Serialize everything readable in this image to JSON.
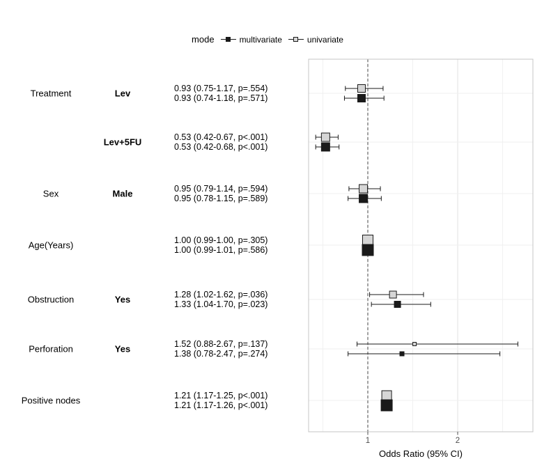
{
  "legend": {
    "title": "mode",
    "items": [
      {
        "mode": "multivariate",
        "label": "multivariate"
      },
      {
        "mode": "univariate",
        "label": "univariate"
      }
    ]
  },
  "axis": {
    "title": "Odds Ratio (95% CI)",
    "ticks": [
      1,
      2
    ],
    "tick_labels": [
      "1",
      "2"
    ],
    "minor_ticks": [
      0.5,
      1.5,
      2.5
    ],
    "ref_line": 1,
    "range": [
      0.34,
      2.84
    ],
    "scale": "linear"
  },
  "colors": {
    "multivariate": "#1a1a1a",
    "univariate": "#d6d6d6",
    "marker_stroke": "#1a1a1a",
    "whisker": "#1a1a1a",
    "grid_major": "#e2e2e2",
    "grid_minor": "#f1f1f1",
    "grid_row": "#efefef",
    "panel_border": "#c4c4c4",
    "ref_line": "#444444",
    "tick_text": "#4d4d4d"
  },
  "chart_data": {
    "type": "forest",
    "xlabel": "Odds Ratio (95% CI)",
    "x_ticks": [
      1,
      2
    ],
    "x_range": [
      0.34,
      2.84
    ],
    "reference_line": 1,
    "legend_title": "mode",
    "series_modes": [
      "univariate",
      "multivariate"
    ],
    "rows": [
      {
        "variable": "Treatment",
        "level": "Lev",
        "estimates": [
          {
            "mode": "univariate",
            "or": 0.93,
            "lo": 0.75,
            "hi": 1.17,
            "p": ".554",
            "label": "0.93 (0.75-1.17, p=.554)",
            "size": 11
          },
          {
            "mode": "multivariate",
            "or": 0.93,
            "lo": 0.74,
            "hi": 1.18,
            "p": ".571",
            "label": "0.93 (0.74-1.18, p=.571)",
            "size": 11
          }
        ]
      },
      {
        "variable": "",
        "level": "Lev+5FU",
        "estimates": [
          {
            "mode": "univariate",
            "or": 0.53,
            "lo": 0.42,
            "hi": 0.67,
            "p": "<.001",
            "label": "0.53 (0.42-0.67, p<.001)",
            "size": 12
          },
          {
            "mode": "multivariate",
            "or": 0.53,
            "lo": 0.42,
            "hi": 0.68,
            "p": "<.001",
            "label": "0.53 (0.42-0.68, p<.001)",
            "size": 12
          }
        ]
      },
      {
        "variable": "Sex",
        "level": "Male",
        "estimates": [
          {
            "mode": "univariate",
            "or": 0.95,
            "lo": 0.79,
            "hi": 1.14,
            "p": ".594",
            "label": "0.95 (0.79-1.14, p=.594)",
            "size": 12
          },
          {
            "mode": "multivariate",
            "or": 0.95,
            "lo": 0.78,
            "hi": 1.15,
            "p": ".589",
            "label": "0.95 (0.78-1.15, p=.589)",
            "size": 12
          }
        ]
      },
      {
        "variable": "Age(Years)",
        "level": "",
        "estimates": [
          {
            "mode": "univariate",
            "or": 1.0,
            "lo": 0.99,
            "hi": 1.0,
            "p": ".305",
            "label": "1.00 (0.99-1.00, p=.305)",
            "size": 15
          },
          {
            "mode": "multivariate",
            "or": 1.0,
            "lo": 0.99,
            "hi": 1.01,
            "p": ".586",
            "label": "1.00 (0.99-1.01, p=.586)",
            "size": 16
          }
        ]
      },
      {
        "variable": "Obstruction",
        "level": "Yes",
        "estimates": [
          {
            "mode": "univariate",
            "or": 1.28,
            "lo": 1.02,
            "hi": 1.62,
            "p": ".036",
            "label": "1.28 (1.02-1.62, p=.036)",
            "size": 10
          },
          {
            "mode": "multivariate",
            "or": 1.33,
            "lo": 1.04,
            "hi": 1.7,
            "p": ".023",
            "label": "1.33 (1.04-1.70, p=.023)",
            "size": 9
          }
        ]
      },
      {
        "variable": "Perforation",
        "level": "Yes",
        "estimates": [
          {
            "mode": "univariate",
            "or": 1.52,
            "lo": 0.88,
            "hi": 2.67,
            "p": ".137",
            "label": "1.52 (0.88-2.67, p=.137)",
            "size": 5
          },
          {
            "mode": "multivariate",
            "or": 1.38,
            "lo": 0.78,
            "hi": 2.47,
            "p": ".274",
            "label": "1.38 (0.78-2.47, p=.274)",
            "size": 6
          }
        ]
      },
      {
        "variable": "Positive nodes",
        "level": "",
        "estimates": [
          {
            "mode": "univariate",
            "or": 1.21,
            "lo": 1.17,
            "hi": 1.25,
            "p": "<.001",
            "label": "1.21 (1.17-1.25, p<.001)",
            "size": 14
          },
          {
            "mode": "multivariate",
            "or": 1.21,
            "lo": 1.17,
            "hi": 1.26,
            "p": "<.001",
            "label": "1.21 (1.17-1.26, p<.001)",
            "size": 16
          }
        ]
      }
    ]
  }
}
